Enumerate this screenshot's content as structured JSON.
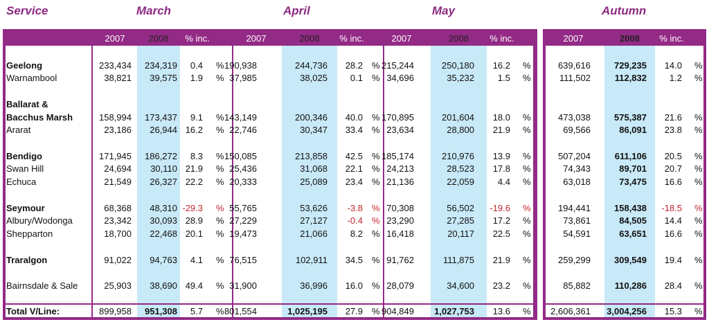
{
  "header": {
    "service": "Service",
    "march": "March",
    "april": "April",
    "may": "May",
    "autumn": "Autumn"
  },
  "column_headers": {
    "months": [
      "2007",
      "2008",
      "% inc."
    ],
    "autumn": [
      "2007",
      "2008",
      "% inc."
    ]
  },
  "percent_sign": "%",
  "rows": [
    {
      "name": "Geelong",
      "bold": true,
      "march": [
        "233,434",
        "234,319",
        "0.4"
      ],
      "april": [
        "190,938",
        "244,736",
        "28.2"
      ],
      "may": [
        "215,244",
        "250,180",
        "16.2"
      ],
      "autumn": [
        "639,616",
        "729,235",
        "14.0"
      ]
    },
    {
      "name": "Warnambool",
      "bold": false,
      "march": [
        "38,821",
        "39,575",
        "1.9"
      ],
      "april": [
        "37,985",
        "38,025",
        "0.1"
      ],
      "may": [
        "34,696",
        "35,232",
        "1.5"
      ],
      "autumn": [
        "111,502",
        "112,832",
        "1.2"
      ]
    },
    {
      "name": "Ballarat &",
      "name2": "Bacchus Marsh",
      "bold": true,
      "march": [
        "158,994",
        "173,437",
        "9.1"
      ],
      "april": [
        "143,149",
        "200,346",
        "40.0"
      ],
      "may": [
        "170,895",
        "201,604",
        "18.0"
      ],
      "autumn": [
        "473,038",
        "575,387",
        "21.6"
      ]
    },
    {
      "name": "Ararat",
      "bold": false,
      "march": [
        "23,186",
        "26,944",
        "16.2"
      ],
      "april": [
        "22,746",
        "30,347",
        "33.4"
      ],
      "may": [
        "23,634",
        "28,800",
        "21.9"
      ],
      "autumn": [
        "69,566",
        "86,091",
        "23.8"
      ]
    },
    {
      "name": "Bendigo",
      "bold": true,
      "march": [
        "171,945",
        "186,272",
        "8.3"
      ],
      "april": [
        "150,085",
        "213,858",
        "42.5"
      ],
      "may": [
        "185,174",
        "210,976",
        "13.9"
      ],
      "autumn": [
        "507,204",
        "611,106",
        "20.5"
      ]
    },
    {
      "name": "Swan Hill",
      "bold": false,
      "march": [
        "24,694",
        "30,110",
        "21.9"
      ],
      "april": [
        "25,436",
        "31,068",
        "22.1"
      ],
      "may": [
        "24,213",
        "28,523",
        "17.8"
      ],
      "autumn": [
        "74,343",
        "89,701",
        "20.7"
      ]
    },
    {
      "name": "Echuca",
      "bold": false,
      "march": [
        "21,549",
        "26,327",
        "22.2"
      ],
      "april": [
        "20,333",
        "25,089",
        "23.4"
      ],
      "may": [
        "21,136",
        "22,059",
        "4.4"
      ],
      "autumn": [
        "63,018",
        "73,475",
        "16.6"
      ]
    },
    {
      "name": "Seymour",
      "bold": true,
      "march": [
        "68,368",
        "48,310",
        "-29.3"
      ],
      "april": [
        "55,765",
        "53,626",
        "-3.8"
      ],
      "may": [
        "70,308",
        "56,502",
        "-19.6"
      ],
      "autumn": [
        "194,441",
        "158,438",
        "-18.5"
      ]
    },
    {
      "name": "Albury/Wodonga",
      "bold": false,
      "march": [
        "23,342",
        "30,093",
        "28.9"
      ],
      "april": [
        "27,229",
        "27,127",
        "-0.4"
      ],
      "may": [
        "23,290",
        "27,285",
        "17.2"
      ],
      "autumn": [
        "73,861",
        "84,505",
        "14.4"
      ]
    },
    {
      "name": "Shepparton",
      "bold": false,
      "march": [
        "18,700",
        "22,468",
        "20.1"
      ],
      "april": [
        "19,473",
        "21,066",
        "8.2"
      ],
      "may": [
        "16,418",
        "20,117",
        "22.5"
      ],
      "autumn": [
        "54,591",
        "63,651",
        "16.6"
      ]
    },
    {
      "name": "Traralgon",
      "bold": true,
      "march": [
        "91,022",
        "94,763",
        "4.1"
      ],
      "april": [
        "76,515",
        "102,911",
        "34.5"
      ],
      "may": [
        "91,762",
        "111,875",
        "21.9"
      ],
      "autumn": [
        "259,299",
        "309,549",
        "19.4"
      ]
    },
    {
      "name": "Bairnsdale & Sale",
      "bold": false,
      "march": [
        "25,903",
        "38,690",
        "49.4"
      ],
      "april": [
        "31,900",
        "36,996",
        "16.0"
      ],
      "may": [
        "28,079",
        "34,600",
        "23.2"
      ],
      "autumn": [
        "85,882",
        "110,286",
        "28.4"
      ]
    }
  ],
  "total": {
    "name": "Total V/Line:",
    "march": [
      "899,958",
      "951,308",
      "5.7"
    ],
    "april": [
      "801,554",
      "1,025,195",
      "27.9"
    ],
    "may": [
      "904,849",
      "1,027,753",
      "13.6"
    ],
    "autumn": [
      "2,606,361",
      "3,004,256",
      "15.3"
    ]
  },
  "colors": {
    "frame": "#932a86",
    "header_text": "#8e2a82",
    "highlight": "#c8e9f7",
    "negative": "#c0272d"
  }
}
